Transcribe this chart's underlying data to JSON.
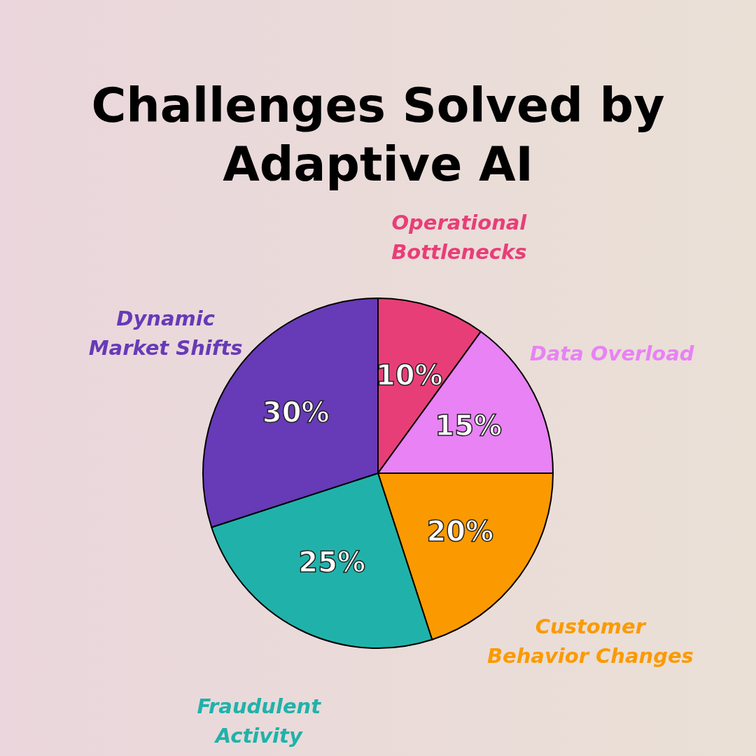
{
  "chart_data": {
    "type": "pie",
    "title": "Challenges Solved by Adaptive AI",
    "categories": [
      "Operational Bottlenecks",
      "Data Overload",
      "Customer Behavior Changes",
      "Fraudulent Activity",
      "Dynamic Market Shifts"
    ],
    "values": [
      10,
      15,
      20,
      25,
      30
    ],
    "colors": [
      "#e83e78",
      "#e882f5",
      "#fb9a00",
      "#20b2aa",
      "#673ab7"
    ],
    "value_labels": [
      "10%",
      "15%",
      "20%",
      "25%",
      "30%"
    ],
    "legend": false
  }
}
